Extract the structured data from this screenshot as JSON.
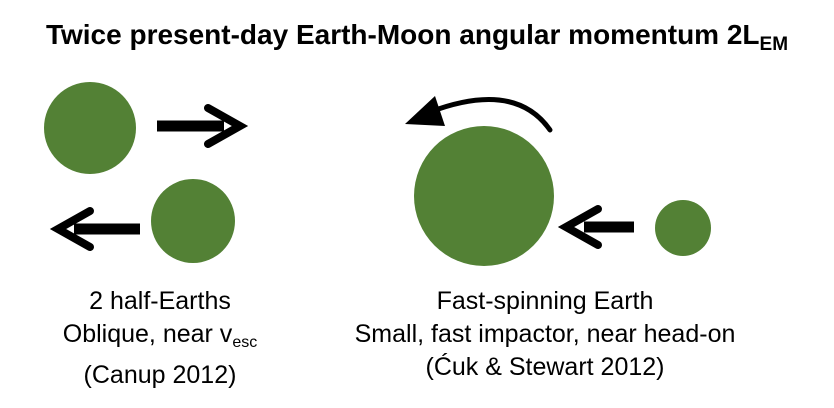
{
  "title": {
    "main": "Twice present-day Earth-Moon angular momentum 2L",
    "subscript": "EM"
  },
  "left_scenario": {
    "line1": "2 half-Earths",
    "line2_main": "Oblique, near v",
    "line2_subscript": "esc",
    "line3": "(Canup 2012)"
  },
  "right_scenario": {
    "line1": "Fast-spinning Earth",
    "line2": "Small, fast impactor, near head-on",
    "line3": "(Ćuk & Stewart 2012)"
  },
  "colors": {
    "planet": "#538135",
    "arrow": "#000000",
    "text": "#000000",
    "background": "#ffffff"
  }
}
